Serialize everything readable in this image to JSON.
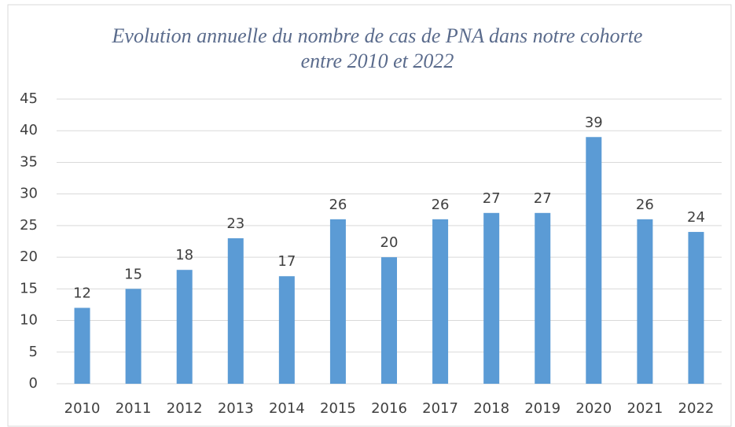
{
  "chart_data": {
    "type": "bar",
    "title": [
      "Evolution annuelle du nombre de cas de PNA dans notre cohorte",
      "entre 2010 et 2022"
    ],
    "categories": [
      "2010",
      "2011",
      "2012",
      "2013",
      "2014",
      "2015",
      "2016",
      "2017",
      "2018",
      "2019",
      "2020",
      "2021",
      "2022"
    ],
    "values": [
      12,
      15,
      18,
      23,
      17,
      26,
      20,
      26,
      27,
      27,
      39,
      26,
      24
    ],
    "color": "#5b9bd5",
    "ylim": [
      0,
      45
    ],
    "yticks": [
      0,
      5,
      10,
      15,
      20,
      25,
      30,
      35,
      40,
      45
    ],
    "grid": true,
    "data_labels": true
  }
}
